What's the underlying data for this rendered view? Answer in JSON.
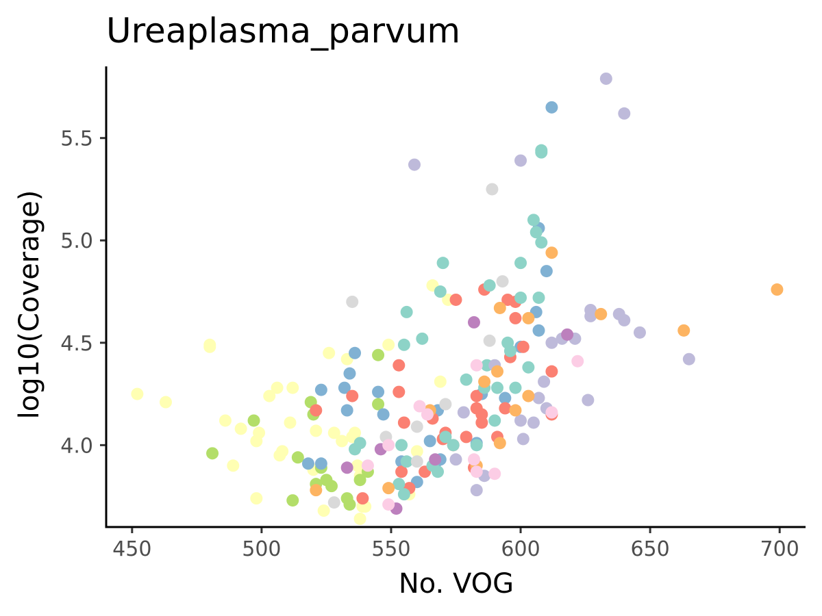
{
  "chart_data": {
    "type": "scatter",
    "title": "Ureaplasma_parvum",
    "xlabel": "No. VOG",
    "ylabel": "log10(Coverage)",
    "xlim": [
      440,
      710
    ],
    "ylim": [
      3.6,
      5.85
    ],
    "xticks": [
      450,
      500,
      550,
      600,
      650,
      700
    ],
    "xtick_labels": [
      "450",
      "500",
      "550",
      "600",
      "650",
      "700"
    ],
    "yticks": [
      4.0,
      4.5,
      5.0,
      5.5
    ],
    "ytick_labels": [
      "4.0",
      "4.5",
      "5.0",
      "5.5"
    ],
    "grid": false,
    "legend": "none",
    "series": [
      {
        "color": "#FFFFB3",
        "points": [
          [
            452,
            4.25
          ],
          [
            463,
            4.21
          ],
          [
            480,
            4.49
          ],
          [
            480,
            4.48
          ],
          [
            486,
            4.12
          ],
          [
            489,
            3.9
          ],
          [
            492,
            4.08
          ],
          [
            498,
            4.02
          ],
          [
            499,
            4.06
          ],
          [
            498,
            3.74
          ],
          [
            503,
            4.24
          ],
          [
            506,
            4.28
          ],
          [
            507,
            3.95
          ],
          [
            508,
            3.97
          ],
          [
            511,
            4.11
          ],
          [
            512,
            4.28
          ],
          [
            520,
            3.88
          ],
          [
            521,
            4.07
          ],
          [
            524,
            3.68
          ],
          [
            526,
            4.45
          ],
          [
            528,
            4.06
          ],
          [
            531,
            4.02
          ],
          [
            533,
            4.42
          ],
          [
            535,
            4.04
          ],
          [
            536,
            4.06
          ],
          [
            537,
            3.9
          ],
          [
            538,
            3.64
          ],
          [
            538,
            3.85
          ],
          [
            539,
            3.7
          ],
          [
            540,
            3.7
          ],
          [
            549,
            4.49
          ],
          [
            557,
            3.76
          ],
          [
            560,
            3.97
          ],
          [
            566,
            4.78
          ],
          [
            569,
            4.31
          ],
          [
            572,
            4.71
          ]
        ]
      },
      {
        "color": "#B3DE69",
        "points": [
          [
            481,
            3.96
          ],
          [
            497,
            4.12
          ],
          [
            512,
            3.73
          ],
          [
            514,
            3.94
          ],
          [
            519,
            4.21
          ],
          [
            520,
            4.15
          ],
          [
            521,
            3.81
          ],
          [
            523,
            3.89
          ],
          [
            525,
            3.83
          ],
          [
            527,
            3.8
          ],
          [
            533,
            3.74
          ],
          [
            534,
            3.71
          ],
          [
            538,
            3.83
          ],
          [
            541,
            3.87
          ],
          [
            545,
            4.44
          ],
          [
            545,
            4.2
          ]
        ]
      },
      {
        "color": "#80B1D3",
        "points": [
          [
            518,
            3.91
          ],
          [
            523,
            4.27
          ],
          [
            523,
            3.91
          ],
          [
            532,
            4.28
          ],
          [
            533,
            4.17
          ],
          [
            534,
            4.35
          ],
          [
            536,
            4.45
          ],
          [
            545,
            4.26
          ],
          [
            547,
            4.15
          ],
          [
            554,
            3.92
          ],
          [
            560,
            3.82
          ],
          [
            565,
            4.02
          ],
          [
            567,
            3.91
          ],
          [
            568,
            4.17
          ],
          [
            569,
            3.93
          ],
          [
            583,
            4.01
          ],
          [
            585,
            4.25
          ],
          [
            594,
            4.23
          ],
          [
            600,
            4.48
          ],
          [
            606,
            4.65
          ],
          [
            607,
            4.56
          ],
          [
            607,
            5.06
          ],
          [
            610,
            4.85
          ],
          [
            612,
            5.65
          ]
        ]
      },
      {
        "color": "#FB8072",
        "points": [
          [
            521,
            4.17
          ],
          [
            535,
            4.24
          ],
          [
            539,
            3.74
          ],
          [
            553,
            4.39
          ],
          [
            553,
            4.26
          ],
          [
            554,
            3.87
          ],
          [
            555,
            4.11
          ],
          [
            557,
            3.79
          ],
          [
            563,
            3.87
          ],
          [
            566,
            4.13
          ],
          [
            570,
            4.03
          ],
          [
            571,
            4.06
          ],
          [
            574,
            4.0
          ],
          [
            575,
            4.71
          ],
          [
            579,
            4.04
          ],
          [
            582,
            3.89
          ],
          [
            583,
            4.24
          ],
          [
            583,
            4.18
          ],
          [
            585,
            4.11
          ],
          [
            585,
            4.15
          ],
          [
            586,
            4.76
          ],
          [
            591,
            4.04
          ],
          [
            594,
            4.18
          ],
          [
            595,
            4.71
          ],
          [
            596,
            4.43
          ],
          [
            598,
            4.7
          ],
          [
            598,
            4.62
          ],
          [
            601,
            4.48
          ],
          [
            612,
            4.36
          ],
          [
            612,
            4.15
          ]
        ]
      },
      {
        "color": "#8DD3C7",
        "points": [
          [
            536,
            3.98
          ],
          [
            538,
            4.01
          ],
          [
            553,
            3.81
          ],
          [
            554,
            4.0
          ],
          [
            555,
            3.76
          ],
          [
            555,
            4.49
          ],
          [
            556,
            3.92
          ],
          [
            556,
            4.65
          ],
          [
            562,
            4.52
          ],
          [
            566,
            3.9
          ],
          [
            568,
            3.87
          ],
          [
            569,
            4.75
          ],
          [
            570,
            4.89
          ],
          [
            571,
            4.04
          ],
          [
            574,
            4.0
          ],
          [
            579,
            4.32
          ],
          [
            583,
            4.0
          ],
          [
            586,
            4.28
          ],
          [
            587,
            4.39
          ],
          [
            588,
            4.78
          ],
          [
            590,
            4.12
          ],
          [
            591,
            4.28
          ],
          [
            595,
            4.5
          ],
          [
            596,
            4.46
          ],
          [
            598,
            4.28
          ],
          [
            600,
            4.89
          ],
          [
            600,
            4.72
          ],
          [
            603,
            4.38
          ],
          [
            605,
            5.1
          ],
          [
            606,
            5.04
          ],
          [
            608,
            5.44
          ],
          [
            608,
            5.43
          ],
          [
            608,
            4.99
          ],
          [
            607,
            4.72
          ]
        ]
      },
      {
        "color": "#BEBADA",
        "points": [
          [
            559,
            5.37
          ],
          [
            575,
            3.93
          ],
          [
            578,
            4.16
          ],
          [
            583,
            3.78
          ],
          [
            586,
            3.85
          ],
          [
            590,
            4.39
          ],
          [
            600,
            5.39
          ],
          [
            600,
            4.12
          ],
          [
            601,
            4.03
          ],
          [
            605,
            4.11
          ],
          [
            607,
            4.23
          ],
          [
            609,
            4.31
          ],
          [
            610,
            4.18
          ],
          [
            612,
            4.5
          ],
          [
            616,
            4.52
          ],
          [
            621,
            4.52
          ],
          [
            626,
            4.22
          ],
          [
            627,
            4.63
          ],
          [
            627,
            4.66
          ],
          [
            633,
            5.79
          ],
          [
            638,
            4.64
          ],
          [
            640,
            4.61
          ],
          [
            640,
            5.62
          ],
          [
            646,
            4.55
          ],
          [
            665,
            4.42
          ]
        ]
      },
      {
        "color": "#FDB462",
        "points": [
          [
            521,
            3.78
          ],
          [
            549,
            3.79
          ],
          [
            565,
            4.17
          ],
          [
            583,
            3.9
          ],
          [
            586,
            4.31
          ],
          [
            591,
            4.36
          ],
          [
            592,
            4.67
          ],
          [
            592,
            4.01
          ],
          [
            598,
            4.17
          ],
          [
            603,
            4.62
          ],
          [
            603,
            4.24
          ],
          [
            612,
            4.94
          ],
          [
            631,
            4.64
          ],
          [
            663,
            4.56
          ],
          [
            699,
            4.76
          ]
        ]
      },
      {
        "color": "#D9D9D9",
        "points": [
          [
            528,
            3.72
          ],
          [
            535,
            4.7
          ],
          [
            548,
            4.04
          ],
          [
            560,
            4.09
          ],
          [
            560,
            3.92
          ],
          [
            571,
            4.2
          ],
          [
            588,
            4.51
          ],
          [
            589,
            5.25
          ],
          [
            593,
            4.8
          ]
        ]
      },
      {
        "color": "#BC80BD",
        "points": [
          [
            533,
            3.89
          ],
          [
            546,
            3.98
          ],
          [
            552,
            3.69
          ],
          [
            567,
            3.93
          ],
          [
            582,
            4.6
          ],
          [
            618,
            4.54
          ]
        ]
      },
      {
        "color": "#FCCDE5",
        "points": [
          [
            541,
            3.9
          ],
          [
            549,
            3.71
          ],
          [
            549,
            4.0
          ],
          [
            561,
            4.19
          ],
          [
            564,
            4.15
          ],
          [
            582,
            3.93
          ],
          [
            583,
            4.39
          ],
          [
            583,
            3.87
          ],
          [
            590,
            3.86
          ],
          [
            612,
            4.16
          ],
          [
            622,
            4.41
          ]
        ]
      }
    ]
  }
}
